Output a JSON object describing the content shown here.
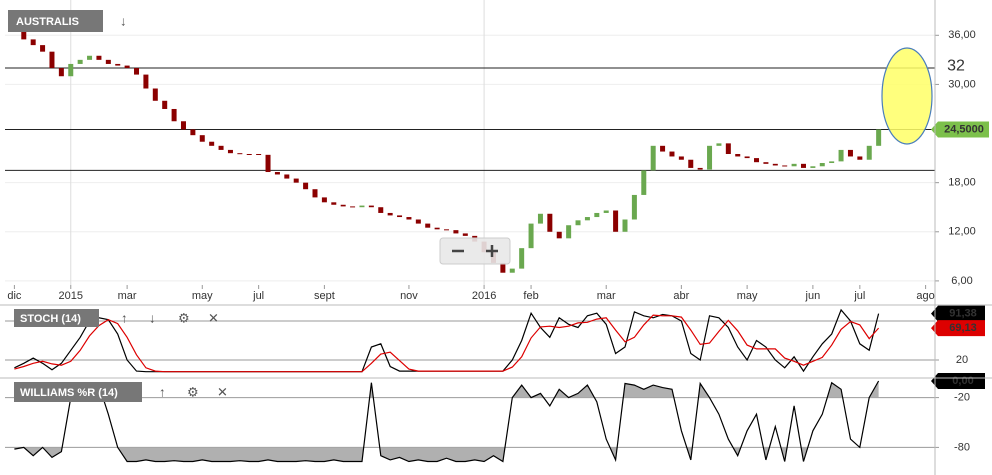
{
  "chart_data": [
    {
      "type": "candlestick",
      "title": "AUSTRALIS",
      "up_color": "#6aa84f",
      "down_color": "#8b0000",
      "xlim": [
        -1,
        98
      ],
      "xticks": [
        {
          "value": 0,
          "label": "dic"
        },
        {
          "value": 6,
          "label": "2015"
        },
        {
          "value": 12,
          "label": "mar"
        },
        {
          "value": 20,
          "label": "may"
        },
        {
          "value": 26,
          "label": "jul"
        },
        {
          "value": 33,
          "label": "sept"
        },
        {
          "value": 42,
          "label": "nov"
        },
        {
          "value": 50,
          "label": "2016"
        },
        {
          "value": 55,
          "label": "feb"
        },
        {
          "value": 63,
          "label": "mar"
        },
        {
          "value": 71,
          "label": "abr"
        },
        {
          "value": 78,
          "label": "may"
        },
        {
          "value": 85,
          "label": "jun"
        },
        {
          "value": 90,
          "label": "jul"
        },
        {
          "value": 97,
          "label": "ago"
        }
      ],
      "ylim": [
        5.5,
        39.7
      ],
      "yticks": [
        {
          "value": 6,
          "label": "6,00"
        },
        {
          "value": 12,
          "label": "12,00"
        },
        {
          "value": 18,
          "label": "18,00"
        },
        {
          "value": 30,
          "label": "30,00"
        },
        {
          "value": 36,
          "label": "36,00"
        }
      ],
      "grid": true,
      "open": [
        38,
        37.5,
        35.5,
        34.8,
        34,
        32,
        31,
        32.5,
        33,
        33.5,
        33,
        32.5,
        32.3,
        32,
        31.2,
        29.5,
        28,
        27,
        25.5,
        24.5,
        23.8,
        23,
        22.5,
        22,
        21.6,
        21.5,
        21.5,
        21.4,
        19.3,
        19,
        18.5,
        18,
        17.2,
        16.2,
        15.6,
        15.3,
        15.1,
        15,
        15.2,
        15,
        14.3,
        14,
        13.8,
        13.5,
        13,
        12.5,
        12.3,
        12.2,
        11.8,
        11.5,
        10.8,
        9.5,
        8.2,
        7,
        7.5,
        10,
        13,
        14.2,
        12,
        11.2,
        12.8,
        13.4,
        13.8,
        14.3,
        14.6,
        12,
        13.5,
        16.5,
        19.5,
        22.5,
        21.8,
        21.2,
        20.8,
        19.8,
        19.6,
        22.5,
        22.8,
        21.5,
        21.2,
        21,
        20.5,
        20.3,
        20.1,
        20,
        20.3,
        19.8,
        20,
        20.4,
        20.6,
        22,
        21.2,
        20.8,
        22.5
      ],
      "close": [
        37.5,
        35.5,
        34.8,
        34,
        32,
        31,
        32.5,
        33,
        33.5,
        33,
        32.5,
        32.3,
        32,
        31.2,
        29.5,
        28,
        27,
        25.5,
        24.5,
        23.8,
        23,
        22.5,
        22,
        21.6,
        21.5,
        21.5,
        21.4,
        19.3,
        19,
        18.5,
        18,
        17.2,
        16.2,
        15.6,
        15.3,
        15.1,
        15,
        15.2,
        15,
        14.3,
        14,
        13.8,
        13.5,
        13,
        12.5,
        12.3,
        12.2,
        11.8,
        11.5,
        10.8,
        9.5,
        8.2,
        7,
        7.5,
        10,
        13,
        14.2,
        12,
        11.2,
        12.8,
        13.4,
        13.8,
        14.3,
        14.6,
        12,
        13.5,
        16.5,
        19.5,
        22.5,
        21.8,
        21.2,
        20.8,
        19.8,
        19.6,
        22.5,
        22.8,
        21.5,
        21.2,
        21,
        20.5,
        20.3,
        20.1,
        20,
        20.3,
        19.8,
        20,
        20.4,
        20.6,
        22,
        21.2,
        20.8,
        22.5,
        24.5
      ],
      "hlines": [
        {
          "value": 32,
          "label": "32",
          "color": "#e02020"
        },
        {
          "value": 24.5
        },
        {
          "value": 19.5
        }
      ],
      "last_price": {
        "value": 24.5,
        "label": "24,5000",
        "color": "#7cc04b"
      }
    },
    {
      "type": "line",
      "title": "STOCH (14)",
      "xlim": [
        -1,
        98
      ],
      "ylim": [
        0,
        100
      ],
      "yticks": [
        20
      ],
      "levels": [
        80,
        20
      ],
      "series": [
        {
          "color": "#000000",
          "last_label": "91,38",
          "values": [
            8,
            15,
            23,
            15,
            5,
            15,
            35,
            55,
            80,
            85,
            82,
            60,
            20,
            3,
            2,
            2,
            2,
            2,
            2,
            2,
            2,
            2,
            2,
            2,
            2,
            2,
            2,
            2,
            2,
            2,
            2,
            2,
            2,
            2,
            2,
            2,
            2,
            2,
            40,
            45,
            10,
            3,
            3,
            3,
            3,
            3,
            3,
            3,
            3,
            3,
            3,
            3,
            3,
            20,
            50,
            92,
            70,
            55,
            85,
            75,
            70,
            88,
            92,
            75,
            30,
            40,
            94,
            88,
            85,
            90,
            88,
            80,
            30,
            20,
            88,
            85,
            70,
            40,
            20,
            50,
            40,
            20,
            8,
            25,
            3,
            25,
            45,
            60,
            97,
            80,
            45,
            35,
            91.38
          ]
        },
        {
          "color": "#dd0000",
          "last_label": "69,13",
          "values": [
            6,
            10,
            15,
            18,
            14,
            12,
            18,
            35,
            57,
            73,
            82,
            76,
            55,
            28,
            8,
            3,
            2,
            2,
            2,
            2,
            2,
            2,
            2,
            2,
            2,
            2,
            2,
            2,
            2,
            2,
            2,
            2,
            2,
            2,
            2,
            2,
            2,
            2,
            15,
            29,
            32,
            19,
            6,
            3,
            3,
            3,
            3,
            3,
            3,
            3,
            3,
            3,
            3,
            9,
            25,
            54,
            71,
            72,
            70,
            72,
            77,
            78,
            83,
            85,
            66,
            48,
            55,
            74,
            89,
            88,
            88,
            86,
            66,
            44,
            46,
            64,
            81,
            65,
            43,
            37,
            37,
            37,
            23,
            18,
            12,
            18,
            24,
            43,
            67,
            79,
            74,
            53,
            69.13
          ]
        }
      ]
    },
    {
      "type": "line",
      "title": "WILLIAMS %R (14)",
      "xlim": [
        -1,
        98
      ],
      "ylim": [
        -100,
        0
      ],
      "yticks": [
        -20,
        -80
      ],
      "levels": [
        -20,
        -80
      ],
      "band_fill": "#b0b0b0",
      "series": [
        {
          "color": "#000000",
          "last_label": "0,00",
          "values": [
            -82,
            -80,
            -90,
            -80,
            -92,
            -85,
            -20,
            -3,
            -10,
            -5,
            -40,
            -80,
            -97,
            -97,
            -95,
            -97,
            -97,
            -96,
            -97,
            -97,
            -95,
            -97,
            -97,
            -97,
            -96,
            -97,
            -97,
            -95,
            -97,
            -97,
            -97,
            -96,
            -97,
            -97,
            -95,
            -97,
            -97,
            -97,
            -2,
            -90,
            -95,
            -92,
            -97,
            -95,
            -97,
            -97,
            -93,
            -97,
            -97,
            -95,
            -97,
            -90,
            -97,
            -20,
            -5,
            -20,
            -15,
            -30,
            -10,
            -20,
            -15,
            -5,
            -25,
            -70,
            -95,
            -3,
            -5,
            -10,
            -5,
            -8,
            -10,
            -60,
            -95,
            -3,
            -20,
            -40,
            -70,
            -90,
            -60,
            -40,
            -95,
            -55,
            -97,
            -30,
            -97,
            -60,
            -40,
            -2,
            -10,
            -70,
            -80,
            -20,
            0
          ]
        }
      ]
    }
  ]
}
